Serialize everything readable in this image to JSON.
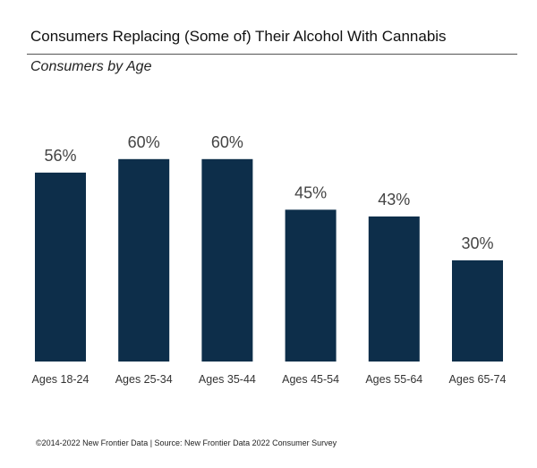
{
  "title": "Consumers Replacing (Some of) Their Alcohol With Cannabis",
  "subtitle": "Consumers by Age",
  "footer": "©2014-2022  New Frontier Data | Source: New Frontier Data 2022 Consumer Survey",
  "colors": {
    "bar": "#0d2e4a",
    "value_label": "#444444",
    "tick_label": "#333333"
  },
  "chart_data": {
    "type": "bar",
    "title": "Consumers Replacing (Some of) Their Alcohol With Cannabis",
    "subtitle": "Consumers by Age",
    "categories": [
      "Ages 18-24",
      "Ages 25-34",
      "Ages 35-44",
      "Ages 45-54",
      "Ages 55-64",
      "Ages 65-74"
    ],
    "values": [
      56,
      60,
      60,
      45,
      43,
      30
    ],
    "data_labels": [
      "56%",
      "60%",
      "60%",
      "45%",
      "43%",
      "30%"
    ],
    "unit": "%",
    "ylim": [
      0,
      100
    ],
    "grid": false,
    "legend": "none"
  }
}
